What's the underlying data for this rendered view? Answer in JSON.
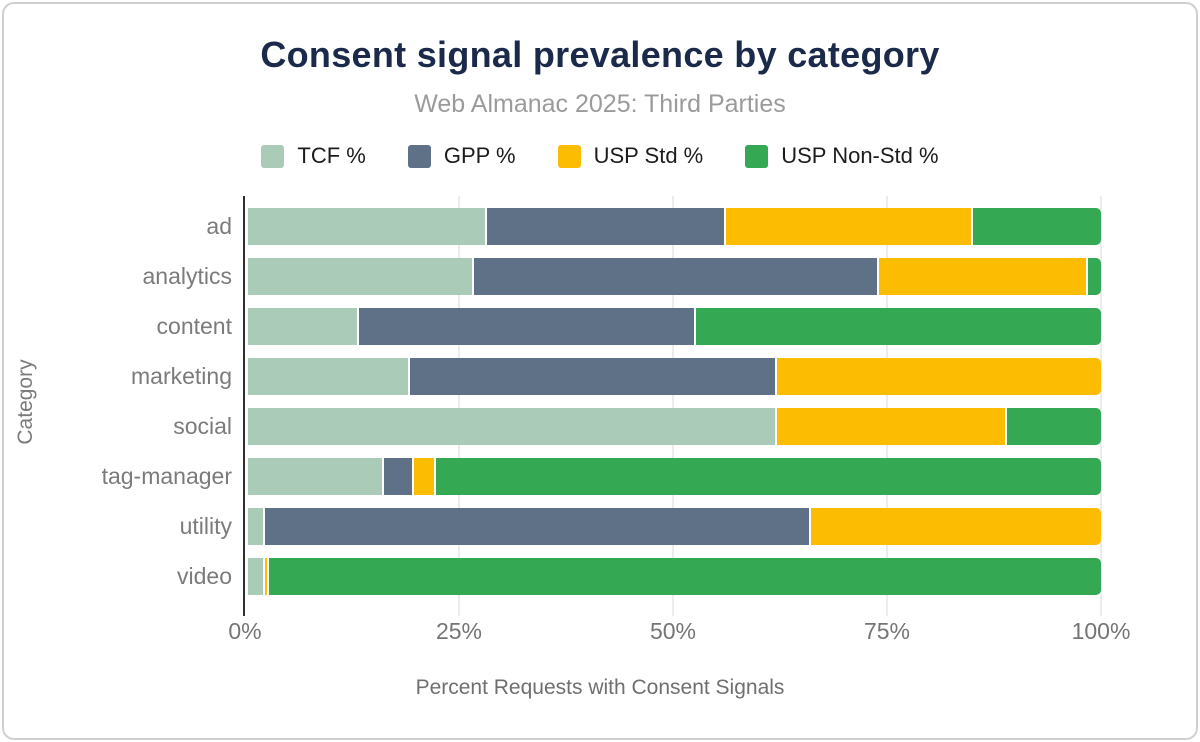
{
  "header": {
    "title": "Consent signal prevalence by category",
    "subtitle": "Web Almanac 2025: Third Parties"
  },
  "chart_data": {
    "type": "bar",
    "orientation": "horizontal",
    "stacked": true,
    "title": "Consent signal prevalence by category",
    "subtitle": "Web Almanac 2025: Third Parties",
    "xlabel": "Percent Requests with Consent Signals",
    "ylabel": "Category",
    "xlim": [
      0,
      100
    ],
    "x_ticks": [
      "0%",
      "25%",
      "50%",
      "75%",
      "100%"
    ],
    "x_tick_values": [
      0,
      25,
      50,
      75,
      100
    ],
    "grid": true,
    "legend_position": "top",
    "categories": [
      "ad",
      "analytics",
      "content",
      "marketing",
      "social",
      "tag-manager",
      "utility",
      "video"
    ],
    "series": [
      {
        "name": "TCF %",
        "color": "#a9cbb7",
        "values": [
          28,
          26.5,
          13,
          19,
          62,
          16,
          2,
          2
        ]
      },
      {
        "name": "GPP %",
        "color": "#5f7186",
        "values": [
          28,
          47.5,
          39.5,
          43,
          0,
          3.5,
          64,
          0
        ]
      },
      {
        "name": "USP Std %",
        "color": "#fbbc02",
        "values": [
          29,
          24.5,
          0,
          38,
          27,
          2.5,
          34,
          0.5
        ]
      },
      {
        "name": "USP Non-Std %",
        "color": "#34a853",
        "values": [
          15,
          1.5,
          47.5,
          0,
          11,
          78,
          0,
          97.5
        ]
      }
    ]
  },
  "style": {
    "title_color": "#1b2a4a",
    "subtitle_color": "#9b9b9b",
    "axis_text_color": "#757575",
    "gridline_color": "#ececec",
    "axis_line_color": "#2e2e2e",
    "frame_border_color": "#cfcfcf"
  }
}
